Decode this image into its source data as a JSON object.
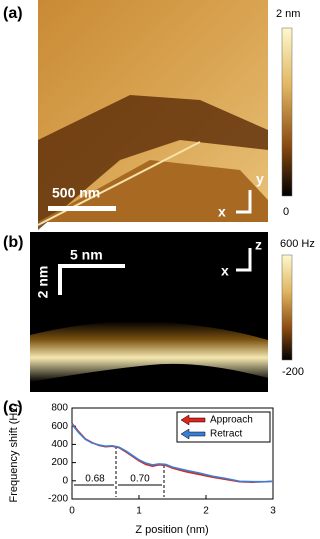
{
  "panel_a": {
    "label": "(a)",
    "colorbar_labels": [
      "2 nm",
      "0"
    ],
    "scale_bar": "500 nm",
    "axes": [
      "y",
      "x"
    ]
  },
  "panel_b": {
    "label": "(b)",
    "colorbar_labels": [
      "600 Hz",
      "-200"
    ],
    "scale_bars": [
      "5 nm",
      "2 nm"
    ],
    "axes": [
      "z",
      "x"
    ]
  },
  "chart_data": {
    "type": "line",
    "label": "(c)",
    "xlabel": "Z position (nm)",
    "ylabel": "Frequency shift (Hz)",
    "x": [
      0,
      0.1,
      0.2,
      0.3,
      0.4,
      0.5,
      0.6,
      0.7,
      0.8,
      0.9,
      1.0,
      1.1,
      1.2,
      1.3,
      1.4,
      1.5,
      1.7,
      1.9,
      2.1,
      2.3,
      2.5,
      2.7,
      2.9,
      3.0
    ],
    "series": [
      {
        "name": "Approach",
        "color": "#e0241b",
        "values": [
          630,
          540,
          460,
          420,
          390,
          375,
          380,
          365,
          320,
          270,
          220,
          180,
          160,
          175,
          170,
          140,
          100,
          70,
          40,
          15,
          -10,
          -15,
          -10,
          -5
        ]
      },
      {
        "name": "Retract",
        "color": "#3a7fd5",
        "values": [
          620,
          530,
          455,
          415,
          395,
          380,
          385,
          370,
          330,
          280,
          230,
          195,
          175,
          185,
          180,
          150,
          115,
          85,
          50,
          25,
          -5,
          -10,
          -10,
          -5
        ]
      }
    ],
    "xlim": [
      0,
      3
    ],
    "ylim": [
      -200,
      800
    ],
    "xticks": [
      0,
      1,
      2,
      3
    ],
    "yticks": [
      -200,
      0,
      200,
      400,
      600,
      800
    ],
    "annotations": [
      "0.68",
      "0.70"
    ],
    "legend": "upper right"
  }
}
